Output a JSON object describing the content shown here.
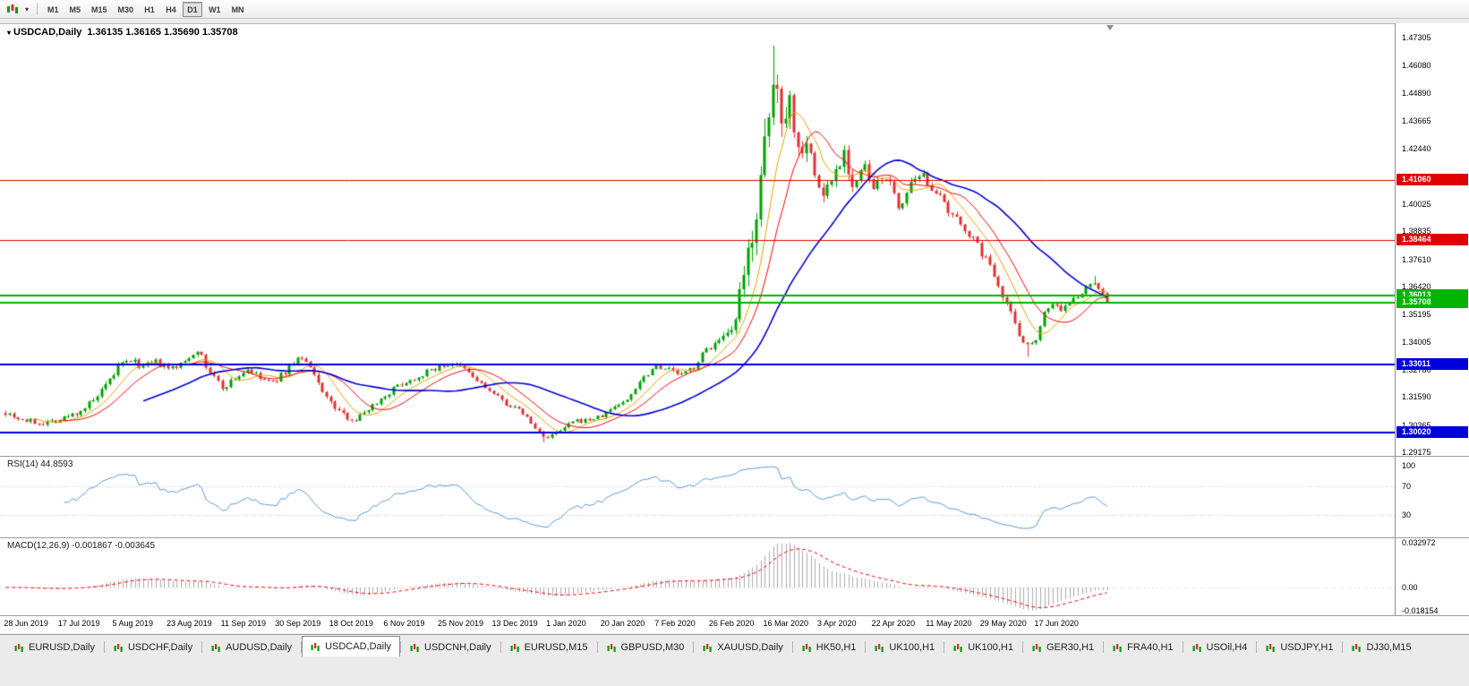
{
  "colors": {
    "up": "#00A000",
    "down": "#E03030",
    "rsi_line": "#5B9BD5",
    "macd_hist": "#ABABAB",
    "macd_signal": "#FF0000",
    "axis_text": "#000000"
  },
  "toolbar": {
    "timeframes": [
      {
        "label": "M1",
        "active": false
      },
      {
        "label": "M5",
        "active": false
      },
      {
        "label": "M15",
        "active": false
      },
      {
        "label": "M30",
        "active": false
      },
      {
        "label": "H1",
        "active": false
      },
      {
        "label": "H4",
        "active": false
      },
      {
        "label": "D1",
        "active": true
      },
      {
        "label": "W1",
        "active": false
      },
      {
        "label": "MN",
        "active": false
      }
    ]
  },
  "chart": {
    "title_symbol": "USDCAD,Daily",
    "title_ohlc": "1.36135 1.36165 1.35690 1.35708",
    "price_axis": {
      "ticks": [
        "1.47305",
        "1.46080",
        "1.44890",
        "1.43665",
        "1.42440",
        "1.40025",
        "1.38835",
        "1.37610",
        "1.36420",
        "1.35195",
        "1.34005",
        "1.32780",
        "1.31590",
        "1.30365",
        "1.29175"
      ]
    },
    "date_axis": {
      "labels": [
        "28 Jun 2019",
        "17 Jul 2019",
        "5 Aug 2019",
        "23 Aug 2019",
        "11 Sep 2019",
        "30 Sep 2019",
        "18 Oct 2019",
        "6 Nov 2019",
        "25 Nov 2019",
        "13 Dec 2019",
        "1 Jan 2020",
        "20 Jan 2020",
        "7 Feb 2020",
        "26 Feb 2020",
        "16 Mar 2020",
        "3 Apr 2020",
        "22 Apr 2020",
        "11 May 2020",
        "29 May 2020",
        "17 Jun 2020"
      ]
    }
  },
  "rsi": {
    "label": "RSI(14) 44.8593",
    "period": 14,
    "value": 44.8593,
    "levels": [
      "100",
      "70",
      "30"
    ]
  },
  "macd": {
    "label": "MACD(12,26,9) -0.001867 -0.003645",
    "fast": 12,
    "slow": 26,
    "signal": 9,
    "value": -0.001867,
    "signal_value": -0.003645,
    "axis_labels": {
      "max": "0.032972",
      "zero": "0.00",
      "min": "-0.018154"
    }
  },
  "tabs": [
    {
      "label": "EURUSD,Daily",
      "active": false
    },
    {
      "label": "USDCHF,Daily",
      "active": false
    },
    {
      "label": "AUDUSD,Daily",
      "active": false
    },
    {
      "label": "USDCAD,Daily",
      "active": true
    },
    {
      "label": "USDCNH,Daily",
      "active": false
    },
    {
      "label": "EURUSD,M15",
      "active": false
    },
    {
      "label": "GBPUSD,M30",
      "active": false
    },
    {
      "label": "XAUUSD,Daily",
      "active": false
    },
    {
      "label": "HK50,H1",
      "active": false
    },
    {
      "label": "UK100,H1",
      "active": false
    },
    {
      "label": "UK100,H1",
      "active": false
    },
    {
      "label": "GER30,H1",
      "active": false
    },
    {
      "label": "FRA40,H1",
      "active": false
    },
    {
      "label": "USOil,H4",
      "active": false
    },
    {
      "label": "USDJPY,H1",
      "active": false
    },
    {
      "label": "DJ30,M15",
      "active": false
    }
  ],
  "chart_data": {
    "type": "candlestick",
    "symbol": "USDCAD",
    "timeframe": "Daily",
    "last_candle": {
      "open": 1.36135,
      "high": 1.36165,
      "low": 1.3569,
      "close": 1.35708
    },
    "visible_price_range": {
      "top": 1.47931,
      "bottom": 1.29018
    },
    "n_candles": 265,
    "label_step": 13,
    "seed": 7,
    "price_path_keypoints": [
      [
        0,
        1.3095,
        16
      ],
      [
        4,
        1.306,
        14
      ],
      [
        8,
        1.3045,
        13
      ],
      [
        13,
        1.306,
        13
      ],
      [
        17,
        1.309,
        14
      ],
      [
        21,
        1.314,
        16
      ],
      [
        24,
        1.32,
        18
      ],
      [
        27,
        1.329,
        18
      ],
      [
        30,
        1.332,
        16
      ],
      [
        33,
        1.329,
        15
      ],
      [
        36,
        1.331,
        15
      ],
      [
        39,
        1.328,
        15
      ],
      [
        42,
        1.33,
        14
      ],
      [
        46,
        1.337,
        15
      ],
      [
        48,
        1.329,
        16
      ],
      [
        52,
        1.32,
        16
      ],
      [
        55,
        1.324,
        14
      ],
      [
        58,
        1.328,
        13
      ],
      [
        61,
        1.324,
        13
      ],
      [
        64,
        1.322,
        13
      ],
      [
        67,
        1.327,
        14
      ],
      [
        70,
        1.333,
        15
      ],
      [
        72,
        1.331,
        14
      ],
      [
        75,
        1.322,
        15
      ],
      [
        78,
        1.313,
        15
      ],
      [
        81,
        1.308,
        14
      ],
      [
        84,
        1.306,
        13
      ],
      [
        87,
        1.311,
        13
      ],
      [
        91,
        1.3165,
        13
      ],
      [
        94,
        1.321,
        12
      ],
      [
        98,
        1.324,
        12
      ],
      [
        101,
        1.327,
        12
      ],
      [
        104,
        1.329,
        12
      ],
      [
        107,
        1.3305,
        12
      ],
      [
        110,
        1.328,
        12
      ],
      [
        113,
        1.323,
        12
      ],
      [
        117,
        1.317,
        12
      ],
      [
        120,
        1.313,
        11
      ],
      [
        124,
        1.309,
        11
      ],
      [
        127,
        1.302,
        11
      ],
      [
        130,
        1.298,
        12
      ],
      [
        133,
        1.301,
        11
      ],
      [
        136,
        1.305,
        11
      ],
      [
        140,
        1.306,
        10
      ],
      [
        143,
        1.3075,
        10
      ],
      [
        146,
        1.312,
        11
      ],
      [
        149,
        1.3145,
        11
      ],
      [
        152,
        1.323,
        12
      ],
      [
        156,
        1.33,
        13
      ],
      [
        159,
        1.328,
        12
      ],
      [
        162,
        1.3255,
        12
      ],
      [
        165,
        1.329,
        13
      ],
      [
        168,
        1.337,
        15
      ],
      [
        171,
        1.34,
        18
      ],
      [
        174,
        1.343,
        30
      ],
      [
        177,
        1.366,
        70
      ],
      [
        179,
        1.39,
        90
      ],
      [
        181,
        1.408,
        100
      ],
      [
        183,
        1.435,
        110
      ],
      [
        184,
        1.453,
        110
      ],
      [
        186,
        1.442,
        90
      ],
      [
        188,
        1.446,
        75
      ],
      [
        190,
        1.424,
        60
      ],
      [
        192,
        1.43,
        55
      ],
      [
        194,
        1.412,
        50
      ],
      [
        196,
        1.404,
        40
      ],
      [
        199,
        1.415,
        40
      ],
      [
        201,
        1.424,
        38
      ],
      [
        203,
        1.408,
        35
      ],
      [
        206,
        1.416,
        32
      ],
      [
        208,
        1.406,
        30
      ],
      [
        211,
        1.413,
        28
      ],
      [
        214,
        1.399,
        26
      ],
      [
        217,
        1.408,
        25
      ],
      [
        220,
        1.412,
        24
      ],
      [
        223,
        1.406,
        22
      ],
      [
        226,
        1.396,
        22
      ],
      [
        230,
        1.39,
        20
      ],
      [
        234,
        1.379,
        20
      ],
      [
        237,
        1.37,
        20
      ],
      [
        240,
        1.357,
        22
      ],
      [
        243,
        1.344,
        20
      ],
      [
        245,
        1.338,
        18
      ],
      [
        247,
        1.342,
        16
      ],
      [
        249,
        1.353,
        15
      ],
      [
        251,
        1.357,
        14
      ],
      [
        253,
        1.354,
        13
      ],
      [
        255,
        1.357,
        13
      ],
      [
        257,
        1.36,
        13
      ],
      [
        259,
        1.363,
        13
      ],
      [
        261,
        1.3665,
        12
      ],
      [
        263,
        1.3605,
        11
      ],
      [
        264,
        1.35708,
        10
      ]
    ],
    "forced_extremes": [
      {
        "i": 184,
        "high": 1.4695
      },
      {
        "i": 129,
        "low": 1.2962
      },
      {
        "i": 245,
        "low": 1.3335
      },
      {
        "i": 261,
        "high": 1.3688
      }
    ],
    "moving_averages": [
      {
        "name": "ma-fast",
        "period": 8,
        "color": "#E8A000",
        "width": 1
      },
      {
        "name": "ma-medium",
        "period": 14,
        "color": "#FF0000",
        "width": 1
      },
      {
        "name": "ma-slow",
        "period": 34,
        "color": "#0000D0",
        "width": 1.6
      }
    ],
    "hlines": [
      {
        "price": 1.4106,
        "label": "1.41060",
        "color": "#E00000",
        "width": 1
      },
      {
        "price": 1.38464,
        "label": "1.38464",
        "color": "#E00000",
        "width": 1
      },
      {
        "price": 1.36013,
        "label": "1.36013",
        "color": "#00B400",
        "width": 2
      },
      {
        "price": 1.35708,
        "label": "1.35708",
        "color": "#00B400",
        "width": 2
      },
      {
        "price": 1.33011,
        "label": "1.33011",
        "color": "#0000DC",
        "width": 2
      },
      {
        "price": 1.3002,
        "label": "1.30020",
        "color": "#0000DC",
        "width": 2
      }
    ]
  }
}
